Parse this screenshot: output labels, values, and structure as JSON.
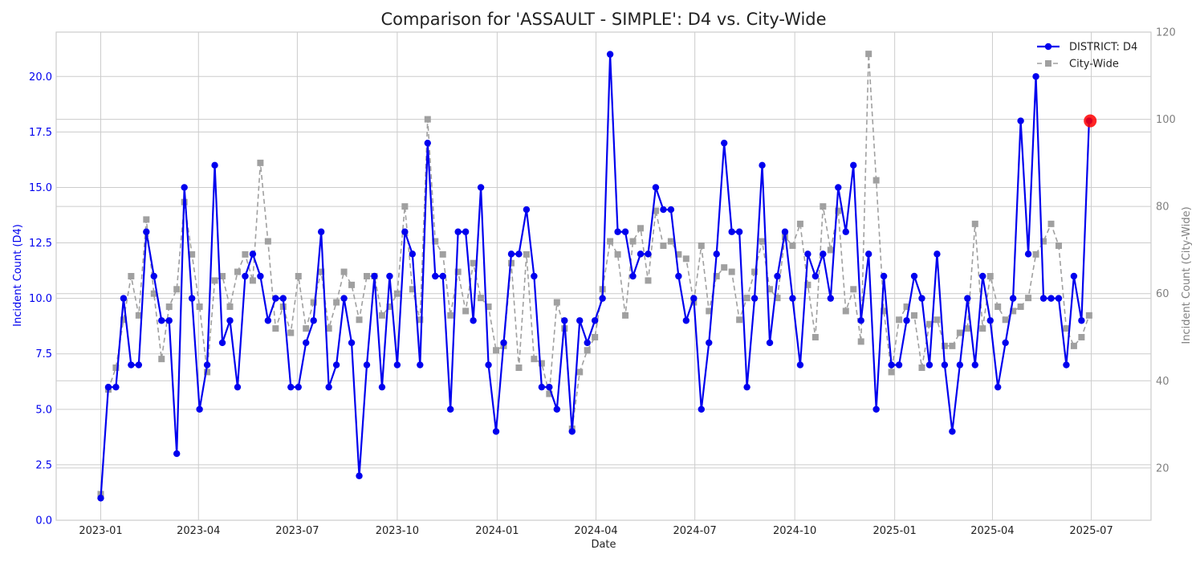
{
  "chart_data": {
    "type": "line",
    "title": "Comparison for 'ASSAULT - SIMPLE': D4 vs. City-Wide",
    "xlabel": "Date",
    "ylabel_left": "Incident Count (D4)",
    "ylabel_right": "Incident Count (City-Wide)",
    "x_range": [
      "2022-11-21",
      "2025-08-25"
    ],
    "ylim_left": [
      0,
      22
    ],
    "ylim_right": [
      8,
      120
    ],
    "x_ticks": [
      {
        "date": "2023-01-01",
        "label": "2023-01"
      },
      {
        "date": "2023-04-01",
        "label": "2023-04"
      },
      {
        "date": "2023-07-01",
        "label": "2023-07"
      },
      {
        "date": "2023-10-01",
        "label": "2023-10"
      },
      {
        "date": "2024-01-01",
        "label": "2024-01"
      },
      {
        "date": "2024-04-01",
        "label": "2024-04"
      },
      {
        "date": "2024-07-01",
        "label": "2024-07"
      },
      {
        "date": "2024-10-01",
        "label": "2024-10"
      },
      {
        "date": "2025-01-01",
        "label": "2025-01"
      },
      {
        "date": "2025-04-01",
        "label": "2025-04"
      },
      {
        "date": "2025-07-01",
        "label": "2025-07"
      }
    ],
    "y_ticks_left": [
      {
        "value": 0,
        "label": "0.0"
      },
      {
        "value": 2.5,
        "label": "2.5"
      },
      {
        "value": 5,
        "label": "5.0"
      },
      {
        "value": 7.5,
        "label": "7.5"
      },
      {
        "value": 10,
        "label": "10.0"
      },
      {
        "value": 12.5,
        "label": "12.5"
      },
      {
        "value": 15,
        "label": "15.0"
      },
      {
        "value": 17.5,
        "label": "17.5"
      },
      {
        "value": 20,
        "label": "20.0"
      }
    ],
    "y_ticks_right": [
      {
        "value": 20,
        "label": "20"
      },
      {
        "value": 40,
        "label": "40"
      },
      {
        "value": 60,
        "label": "60"
      },
      {
        "value": 80,
        "label": "80"
      },
      {
        "value": 100,
        "label": "100"
      },
      {
        "value": 120,
        "label": "120"
      }
    ],
    "grid": true,
    "legend_position": "top-right",
    "start_date": "2023-01-01",
    "step_days": 7,
    "series": [
      {
        "name": "DISTRICT: D4",
        "axis": "left",
        "color": "#0000ee",
        "style": "solid",
        "marker": "circle",
        "values": [
          1,
          6,
          6,
          10,
          7,
          7,
          13,
          11,
          9,
          9,
          3,
          15,
          10,
          5,
          7,
          16,
          8,
          9,
          6,
          11,
          12,
          11,
          9,
          10,
          10,
          6,
          6,
          8,
          9,
          13,
          6,
          7,
          10,
          8,
          2,
          7,
          11,
          6,
          11,
          7,
          13,
          12,
          7,
          17,
          11,
          11,
          5,
          13,
          13,
          9,
          15,
          7,
          4,
          8,
          12,
          12,
          14,
          11,
          6,
          6,
          5,
          9,
          4,
          9,
          8,
          9,
          10,
          21,
          13,
          13,
          11,
          12,
          12,
          15,
          14,
          14,
          11,
          9,
          10,
          5,
          8,
          12,
          17,
          13,
          13,
          6,
          10,
          16,
          8,
          11,
          13,
          10,
          7,
          12,
          11,
          12,
          10,
          15,
          13,
          16,
          9,
          12,
          5,
          11,
          7,
          7,
          9,
          11,
          10,
          7,
          12,
          7,
          4,
          7,
          10,
          7,
          11,
          9,
          6,
          8,
          10,
          18,
          12,
          20,
          10,
          10,
          10,
          7,
          11,
          9,
          18
        ]
      },
      {
        "name": "City-Wide",
        "axis": "right",
        "color": "#a0a0a0",
        "style": "dashed",
        "marker": "square",
        "values": [
          14,
          38,
          43,
          54,
          64,
          55,
          77,
          60,
          45,
          57,
          61,
          81,
          69,
          57,
          42,
          63,
          64,
          57,
          65,
          69,
          63,
          90,
          72,
          52,
          57,
          51,
          64,
          52,
          58,
          65,
          52,
          58,
          65,
          62,
          54,
          64,
          64,
          55,
          57,
          60,
          80,
          61,
          54,
          100,
          72,
          69,
          55,
          65,
          56,
          67,
          59,
          57,
          47,
          48,
          67,
          43,
          69,
          45,
          44,
          37,
          58,
          52,
          29,
          42,
          47,
          50,
          61,
          72,
          69,
          55,
          72,
          75,
          63,
          79,
          71,
          72,
          69,
          68,
          58,
          71,
          56,
          64,
          66,
          65,
          54,
          59,
          65,
          72,
          61,
          59,
          73,
          71,
          76,
          62,
          50,
          80,
          70,
          79,
          56,
          61,
          49,
          115,
          86,
          56,
          42,
          54,
          57,
          55,
          43,
          53,
          54,
          48,
          48,
          51,
          52,
          76,
          52,
          64,
          57,
          54,
          56,
          57,
          59,
          69,
          72,
          76,
          71,
          52,
          48,
          50,
          55
        ]
      }
    ],
    "highlight": {
      "date": "2025-06-30",
      "value": 18,
      "color": "#ff0000"
    }
  }
}
